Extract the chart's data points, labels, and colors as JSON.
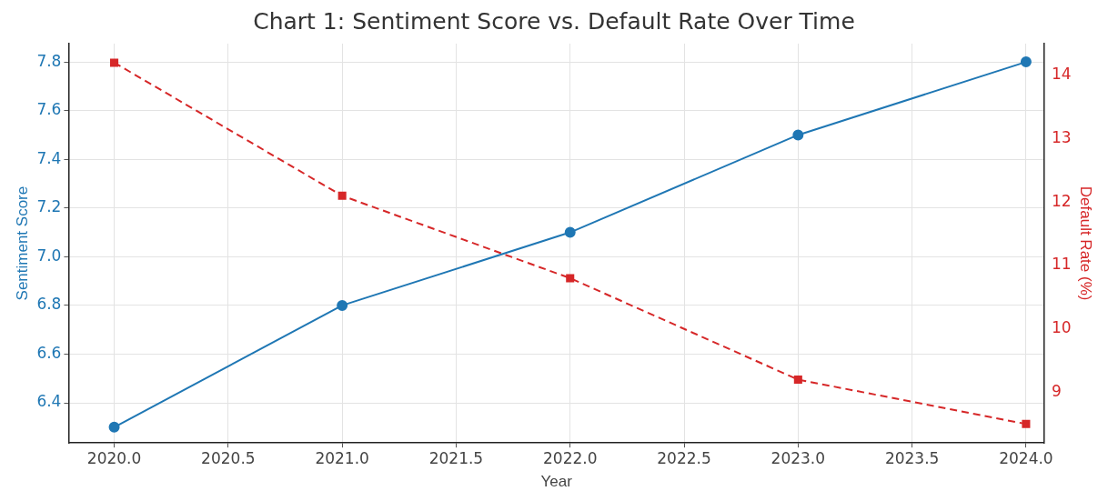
{
  "chart_data": {
    "type": "line",
    "title": "Chart 1: Sentiment Score vs. Default Rate Over Time",
    "xlabel": "Year",
    "ylabel": "Sentiment Score",
    "y2label": "Default Rate (%)",
    "x": [
      2020,
      2021,
      2022,
      2023,
      2024
    ],
    "series": [
      {
        "color": "#1f77b4",
        "values": [
          6.3,
          6.8,
          7.1,
          7.5,
          7.8
        ],
        "marker": "circle",
        "line_style": "solid"
      },
      {
        "color": "#d62728",
        "values": [
          14.2,
          12.1,
          10.8,
          9.2,
          8.5
        ],
        "marker": "square",
        "line_style": "dashed",
        "axis": "y2"
      }
    ],
    "xlim": [
      2019.8,
      2024.08
    ],
    "xticks": [
      {
        "value": 2020,
        "label": "2020.0"
      },
      {
        "value": 2020.5,
        "label": "2020.5"
      },
      {
        "value": 2021,
        "label": "2021.0"
      },
      {
        "value": 2021.5,
        "label": "2021.5"
      },
      {
        "value": 2022,
        "label": "2022.0"
      },
      {
        "value": 2022.5,
        "label": "2022.5"
      },
      {
        "value": 2023,
        "label": "2023.0"
      },
      {
        "value": 2023.5,
        "label": "2023.5"
      },
      {
        "value": 2024,
        "label": "2024.0"
      }
    ],
    "ylim": [
      6.235,
      7.875
    ],
    "yticks": [
      {
        "value": 6.4,
        "label": "6.4"
      },
      {
        "value": 6.6,
        "label": "6.6"
      },
      {
        "value": 6.8,
        "label": "6.8"
      },
      {
        "value": 7.0,
        "label": "7.0"
      },
      {
        "value": 7.2,
        "label": "7.2"
      },
      {
        "value": 7.4,
        "label": "7.4"
      },
      {
        "value": 7.6,
        "label": "7.6"
      },
      {
        "value": 7.8,
        "label": "7.8"
      }
    ],
    "y2lim": [
      8.2,
      14.5
    ],
    "y2ticks": [
      9,
      10,
      11,
      12,
      13,
      14
    ],
    "grid": true
  }
}
